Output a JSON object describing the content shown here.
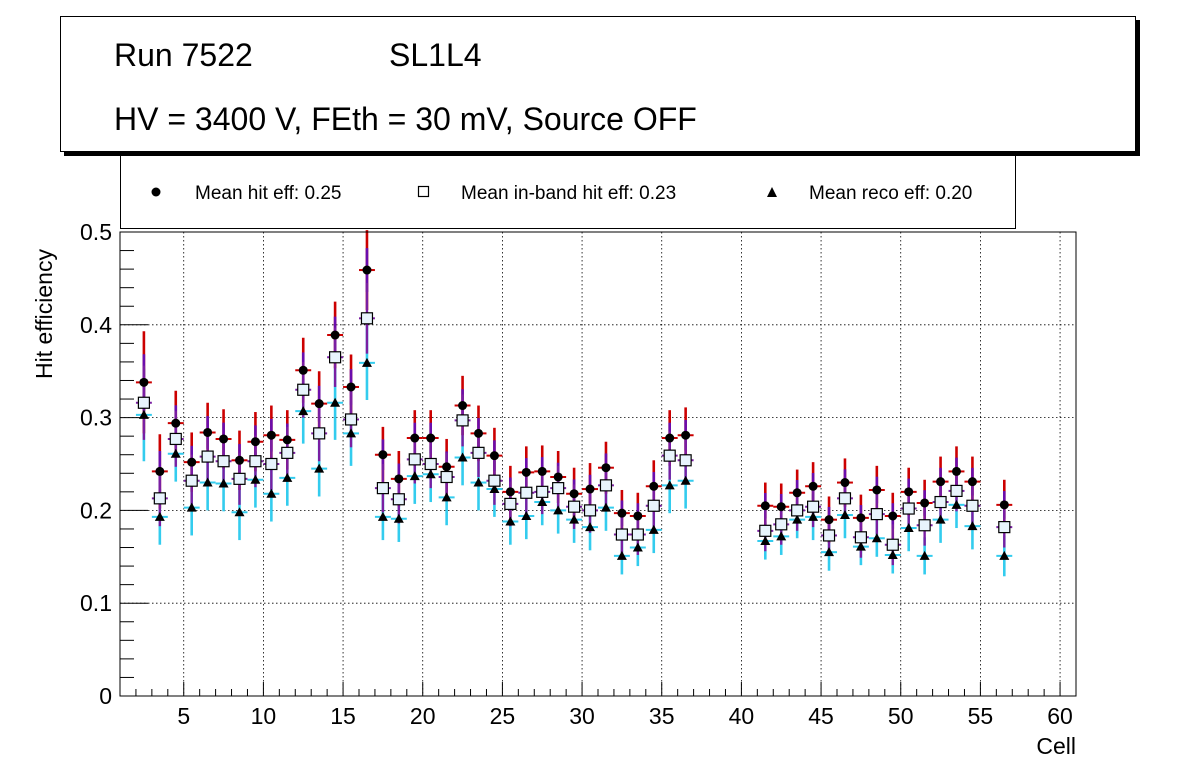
{
  "title": {
    "run": "Run 7522",
    "layer": "SL1L4",
    "conditions": "HV = 3400 V, FEth = 30 mV, Source OFF"
  },
  "legend": [
    {
      "label": "Mean hit  eff: 0.25",
      "marker": "circle"
    },
    {
      "label": "Mean in-band hit eff: 0.23",
      "marker": "open-square"
    },
    {
      "label": "Mean reco eff: 0.20",
      "marker": "triangle"
    }
  ],
  "colors": {
    "hit_error": "#cc0000",
    "hit_error_inner": "#6a0dad",
    "inband_error": "#7a1fa2",
    "reco_error": "#33ccee",
    "marker": "#000000",
    "inband_fill": "#e8f4fc",
    "grid": "#000000"
  },
  "chart_data": {
    "type": "scatter",
    "xlabel": "Cell",
    "ylabel": "Hit efficiency",
    "xlim": [
      1,
      61
    ],
    "ylim": [
      0,
      0.5
    ],
    "xticks": [
      5,
      10,
      15,
      20,
      25,
      30,
      35,
      40,
      45,
      50,
      55,
      60
    ],
    "yticks": [
      0,
      0.1,
      0.2,
      0.3,
      0.4,
      0.5
    ],
    "ytick_labels": [
      "0",
      "0.1",
      "0.2",
      "0.3",
      "0.4",
      "0.5"
    ],
    "grid": true,
    "series": [
      {
        "name": "hit",
        "x": [
          2.5,
          3.5,
          4.5,
          5.5,
          6.5,
          7.5,
          8.5,
          9.5,
          10.5,
          11.5,
          12.5,
          13.5,
          14.5,
          15.5,
          16.5,
          17.5,
          18.5,
          19.5,
          20.5,
          21.5,
          22.5,
          23.5,
          24.5,
          25.5,
          26.5,
          27.5,
          28.5,
          29.5,
          30.5,
          31.5,
          32.5,
          33.5,
          34.5,
          35.5,
          36.5,
          41.5,
          42.5,
          43.5,
          44.5,
          45.5,
          46.5,
          47.5,
          48.5,
          49.5,
          50.5,
          51.5,
          52.5,
          53.5,
          54.5,
          56.5
        ],
        "y": [
          0.338,
          0.242,
          0.294,
          0.252,
          0.284,
          0.277,
          0.254,
          0.274,
          0.281,
          0.276,
          0.351,
          0.315,
          0.389,
          0.333,
          0.459,
          0.26,
          0.234,
          0.278,
          0.278,
          0.247,
          0.313,
          0.283,
          0.259,
          0.22,
          0.241,
          0.242,
          0.236,
          0.218,
          0.223,
          0.246,
          0.197,
          0.194,
          0.226,
          0.278,
          0.281,
          0.205,
          0.204,
          0.219,
          0.226,
          0.19,
          0.23,
          0.192,
          0.222,
          0.194,
          0.22,
          0.208,
          0.231,
          0.242,
          0.231,
          0.206
        ],
        "err": [
          0.055,
          0.04,
          0.035,
          0.032,
          0.032,
          0.032,
          0.032,
          0.032,
          0.032,
          0.032,
          0.035,
          0.035,
          0.036,
          0.035,
          0.043,
          0.03,
          0.03,
          0.03,
          0.03,
          0.03,
          0.032,
          0.03,
          0.03,
          0.028,
          0.028,
          0.028,
          0.028,
          0.028,
          0.028,
          0.028,
          0.025,
          0.025,
          0.028,
          0.03,
          0.03,
          0.025,
          0.025,
          0.025,
          0.026,
          0.025,
          0.026,
          0.025,
          0.026,
          0.025,
          0.026,
          0.025,
          0.027,
          0.027,
          0.027,
          0.027
        ]
      },
      {
        "name": "in-band hit",
        "x": [
          2.5,
          3.5,
          4.5,
          5.5,
          6.5,
          7.5,
          8.5,
          9.5,
          10.5,
          11.5,
          12.5,
          13.5,
          14.5,
          15.5,
          16.5,
          17.5,
          18.5,
          19.5,
          20.5,
          21.5,
          22.5,
          23.5,
          24.5,
          25.5,
          26.5,
          27.5,
          28.5,
          29.5,
          30.5,
          31.5,
          32.5,
          33.5,
          34.5,
          35.5,
          36.5,
          41.5,
          42.5,
          43.5,
          44.5,
          45.5,
          46.5,
          47.5,
          48.5,
          49.5,
          50.5,
          51.5,
          52.5,
          53.5,
          54.5,
          56.5
        ],
        "y": [
          0.316,
          0.213,
          0.277,
          0.232,
          0.258,
          0.253,
          0.234,
          0.253,
          0.25,
          0.262,
          0.33,
          0.283,
          0.365,
          0.298,
          0.407,
          0.224,
          0.212,
          0.255,
          0.25,
          0.236,
          0.297,
          0.262,
          0.232,
          0.207,
          0.219,
          0.22,
          0.224,
          0.204,
          0.2,
          0.227,
          0.174,
          0.174,
          0.205,
          0.259,
          0.254,
          0.178,
          0.185,
          0.2,
          0.204,
          0.173,
          0.213,
          0.171,
          0.196,
          0.163,
          0.202,
          0.184,
          0.209,
          0.221,
          0.205,
          0.182
        ],
        "err": [
          0.04,
          0.03,
          0.03,
          0.028,
          0.028,
          0.028,
          0.028,
          0.028,
          0.028,
          0.028,
          0.03,
          0.03,
          0.032,
          0.03,
          0.038,
          0.026,
          0.026,
          0.026,
          0.026,
          0.026,
          0.028,
          0.026,
          0.026,
          0.024,
          0.024,
          0.024,
          0.024,
          0.024,
          0.024,
          0.024,
          0.022,
          0.022,
          0.024,
          0.026,
          0.026,
          0.022,
          0.022,
          0.022,
          0.022,
          0.022,
          0.022,
          0.022,
          0.022,
          0.022,
          0.022,
          0.022,
          0.022,
          0.022,
          0.022,
          0.022
        ]
      },
      {
        "name": "reco",
        "x": [
          2.5,
          3.5,
          4.5,
          5.5,
          6.5,
          7.5,
          8.5,
          9.5,
          10.5,
          11.5,
          12.5,
          13.5,
          14.5,
          15.5,
          16.5,
          17.5,
          18.5,
          19.5,
          20.5,
          21.5,
          22.5,
          23.5,
          24.5,
          25.5,
          26.5,
          27.5,
          28.5,
          29.5,
          30.5,
          31.5,
          32.5,
          33.5,
          34.5,
          35.5,
          36.5,
          41.5,
          42.5,
          43.5,
          44.5,
          45.5,
          46.5,
          47.5,
          48.5,
          49.5,
          50.5,
          51.5,
          52.5,
          53.5,
          54.5,
          56.5
        ],
        "y": [
          0.303,
          0.193,
          0.261,
          0.203,
          0.23,
          0.229,
          0.198,
          0.233,
          0.218,
          0.235,
          0.307,
          0.245,
          0.316,
          0.283,
          0.359,
          0.193,
          0.191,
          0.237,
          0.239,
          0.214,
          0.257,
          0.23,
          0.223,
          0.188,
          0.194,
          0.209,
          0.2,
          0.19,
          0.182,
          0.203,
          0.151,
          0.16,
          0.179,
          0.227,
          0.232,
          0.167,
          0.172,
          0.19,
          0.193,
          0.155,
          0.195,
          0.161,
          0.17,
          0.152,
          0.181,
          0.151,
          0.19,
          0.206,
          0.183,
          0.151
        ],
        "err": [
          0.05,
          0.03,
          0.03,
          0.03,
          0.03,
          0.03,
          0.03,
          0.03,
          0.03,
          0.03,
          0.035,
          0.03,
          0.04,
          0.035,
          0.04,
          0.025,
          0.025,
          0.03,
          0.03,
          0.03,
          0.03,
          0.03,
          0.03,
          0.025,
          0.025,
          0.025,
          0.025,
          0.025,
          0.025,
          0.025,
          0.02,
          0.02,
          0.025,
          0.03,
          0.03,
          0.02,
          0.02,
          0.02,
          0.025,
          0.02,
          0.025,
          0.02,
          0.02,
          0.02,
          0.025,
          0.02,
          0.025,
          0.025,
          0.025,
          0.022
        ]
      }
    ]
  }
}
